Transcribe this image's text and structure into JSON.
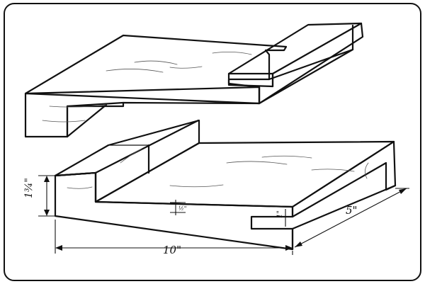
{
  "dimensions": {
    "length": "10\"",
    "width": "5\"",
    "thickness": "1¾\"",
    "groove_depth": "½\"",
    "tongue_height": "1\""
  },
  "colors": {
    "ink": "#111111",
    "paper": "#ffffff"
  }
}
